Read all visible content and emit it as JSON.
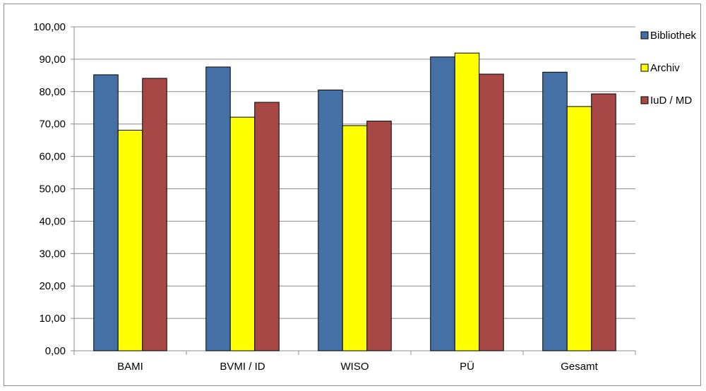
{
  "chart_data": {
    "type": "bar",
    "categories": [
      "BAMI",
      "BVMI / ID",
      "WISO",
      "PÜ",
      "Gesamt"
    ],
    "series": [
      {
        "name": "Bibliothek",
        "color": "#4470a6",
        "values": [
          85.2,
          87.6,
          80.5,
          90.7,
          86.0
        ]
      },
      {
        "name": "Archiv",
        "color": "#ffff00",
        "values": [
          68.1,
          72.1,
          69.5,
          91.9,
          75.4
        ]
      },
      {
        "name": "IuD / MD",
        "color": "#a84846",
        "values": [
          84.1,
          76.7,
          70.9,
          85.4,
          79.3
        ]
      }
    ],
    "yticks": [
      "0,00",
      "10,00",
      "20,00",
      "30,00",
      "40,00",
      "50,00",
      "60,00",
      "70,00",
      "80,00",
      "90,00",
      "100,00"
    ],
    "ylim": [
      0,
      100
    ],
    "grid": true,
    "legend_position": "right-top"
  }
}
